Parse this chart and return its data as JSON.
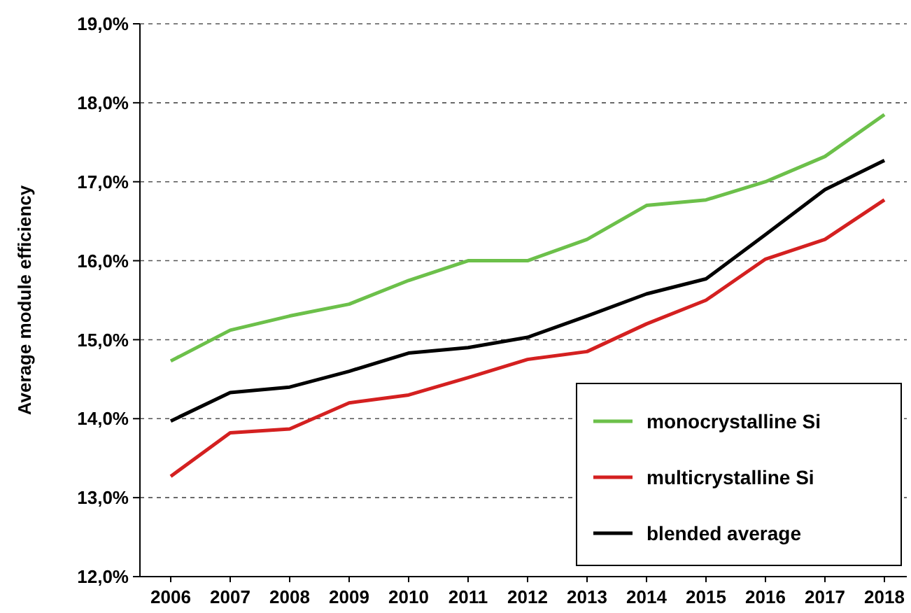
{
  "chart_data": {
    "type": "line",
    "ylabel": "Average module efficiency",
    "categories": [
      "2006",
      "2007",
      "2008",
      "2009",
      "2010",
      "2011",
      "2012",
      "2013",
      "2014",
      "2015",
      "2016",
      "2017",
      "2018"
    ],
    "series": [
      {
        "name": "monocrystalline Si",
        "color": "#6cc04a",
        "values": [
          14.73,
          15.12,
          15.3,
          15.45,
          15.75,
          16.0,
          16.0,
          16.27,
          16.7,
          16.77,
          17.0,
          17.32,
          17.85
        ]
      },
      {
        "name": "multicrystalline Si",
        "color": "#d42020",
        "values": [
          13.27,
          13.82,
          13.87,
          14.2,
          14.3,
          14.52,
          14.75,
          14.85,
          15.2,
          15.5,
          16.02,
          16.27,
          16.77
        ]
      },
      {
        "name": "blended average",
        "color": "#000000",
        "values": [
          13.97,
          14.33,
          14.4,
          14.6,
          14.83,
          14.9,
          15.03,
          15.3,
          15.58,
          15.77,
          16.33,
          16.9,
          17.27
        ]
      }
    ],
    "ylim": [
      12,
      19
    ],
    "yticks": [
      {
        "value": 12,
        "label": "12,0%"
      },
      {
        "value": 13,
        "label": "13,0%"
      },
      {
        "value": 14,
        "label": "14,0%"
      },
      {
        "value": 15,
        "label": "15,0%"
      },
      {
        "value": 16,
        "label": "16,0%"
      },
      {
        "value": 17,
        "label": "17,0%"
      },
      {
        "value": 18,
        "label": "18,0%"
      },
      {
        "value": 19,
        "label": "19,0%"
      }
    ],
    "grid": "y",
    "legend": "bottom right",
    "marker": "none",
    "line_style": "solid"
  }
}
